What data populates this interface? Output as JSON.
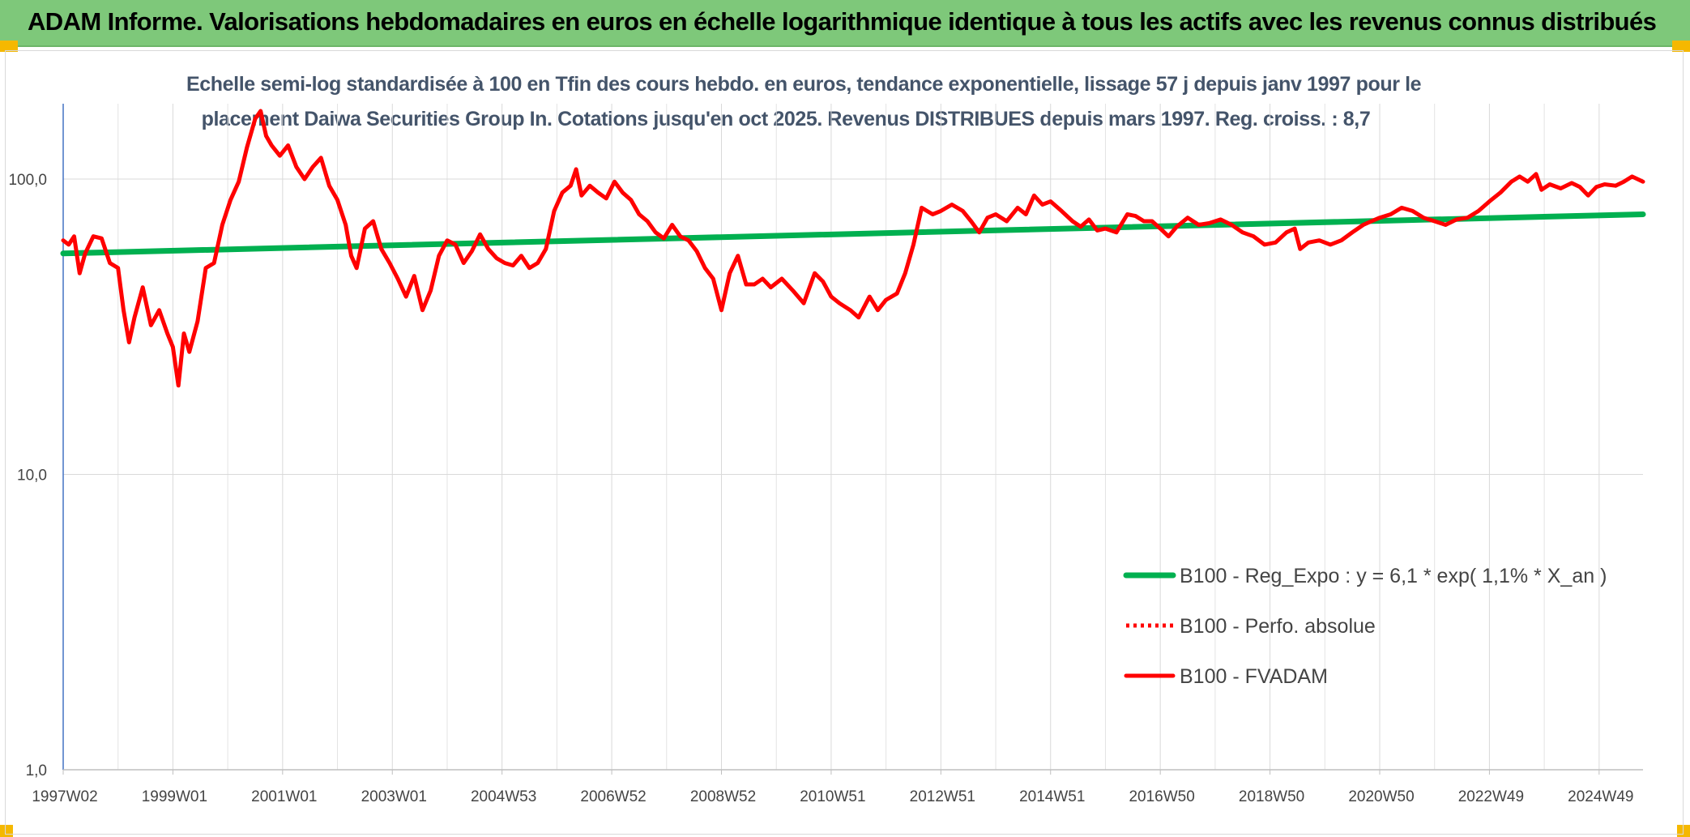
{
  "banner": {
    "title": "ADAM Informe. Valorisations hebdomadaires en euros en échelle logarithmique identique à tous les actifs avec les revenus connus distribués"
  },
  "chart_data": {
    "type": "line",
    "title_line1": "Echelle semi-log standardisée à 100 en Tfin des cours hebdo. en euros, tendance exponentielle, lissage 57 j depuis janv 1997 pour le",
    "title_line2": "placement Daiwa Securities Group In. Cotations jusqu'en oct 2025. Revenus DISTRIBUES depuis mars 1997. Reg. croiss. : 8,7",
    "y_scale": "log",
    "ylim": [
      1,
      180
    ],
    "y_ticks": [
      {
        "value": 1,
        "label": "1,0"
      },
      {
        "value": 10,
        "label": "10,0"
      },
      {
        "value": 100,
        "label": "100,0"
      }
    ],
    "x_range": [
      1997.0,
      2025.8
    ],
    "x_ticks": [
      {
        "value": 1997.0,
        "label": "1997W02"
      },
      {
        "value": 1999.0,
        "label": "1999W01"
      },
      {
        "value": 2001.0,
        "label": "2001W01"
      },
      {
        "value": 2003.0,
        "label": "2003W01"
      },
      {
        "value": 2005.0,
        "label": "2004W53"
      },
      {
        "value": 2007.0,
        "label": "2006W52"
      },
      {
        "value": 2009.0,
        "label": "2008W52"
      },
      {
        "value": 2011.0,
        "label": "2010W51"
      },
      {
        "value": 2013.0,
        "label": "2012W51"
      },
      {
        "value": 2015.0,
        "label": "2014W51"
      },
      {
        "value": 2017.0,
        "label": "2016W50"
      },
      {
        "value": 2019.0,
        "label": "2018W50"
      },
      {
        "value": 2021.0,
        "label": "2020W50"
      },
      {
        "value": 2023.0,
        "label": "2022W49"
      },
      {
        "value": 2025.0,
        "label": "2024W49"
      }
    ],
    "grid": "vertical",
    "legend_position": "right",
    "series": [
      {
        "name": "B100 - Reg_Expo : y = 6,1 * exp( 1,1% *  X_an )",
        "color": "#00b050",
        "style": "solid",
        "points": [
          [
            1997.0,
            56
          ],
          [
            2025.8,
            76
          ]
        ]
      },
      {
        "name": "B100 - Perfo. absolue",
        "color": "#ff0000",
        "style": "dotted",
        "points": []
      },
      {
        "name": "B100 - FVADAM",
        "color": "#ff0000",
        "style": "solid",
        "points": [
          [
            1997.0,
            62
          ],
          [
            1997.1,
            60
          ],
          [
            1997.2,
            64
          ],
          [
            1997.3,
            48
          ],
          [
            1997.4,
            56
          ],
          [
            1997.55,
            64
          ],
          [
            1997.7,
            63
          ],
          [
            1997.85,
            52
          ],
          [
            1998.0,
            50
          ],
          [
            1998.1,
            36
          ],
          [
            1998.2,
            28
          ],
          [
            1998.3,
            34
          ],
          [
            1998.45,
            43
          ],
          [
            1998.6,
            32
          ],
          [
            1998.75,
            36
          ],
          [
            1998.9,
            30
          ],
          [
            1999.0,
            27
          ],
          [
            1999.1,
            20
          ],
          [
            1999.2,
            30
          ],
          [
            1999.3,
            26
          ],
          [
            1999.45,
            33
          ],
          [
            1999.6,
            50
          ],
          [
            1999.75,
            52
          ],
          [
            1999.9,
            70
          ],
          [
            2000.05,
            85
          ],
          [
            2000.2,
            98
          ],
          [
            2000.35,
            128
          ],
          [
            2000.5,
            160
          ],
          [
            2000.6,
            170
          ],
          [
            2000.7,
            140
          ],
          [
            2000.8,
            130
          ],
          [
            2000.95,
            120
          ],
          [
            2001.1,
            130
          ],
          [
            2001.25,
            110
          ],
          [
            2001.4,
            100
          ],
          [
            2001.55,
            110
          ],
          [
            2001.7,
            118
          ],
          [
            2001.85,
            95
          ],
          [
            2002.0,
            85
          ],
          [
            2002.15,
            70
          ],
          [
            2002.25,
            55
          ],
          [
            2002.35,
            50
          ],
          [
            2002.5,
            68
          ],
          [
            2002.65,
            72
          ],
          [
            2002.8,
            58
          ],
          [
            2002.95,
            52
          ],
          [
            2003.1,
            46
          ],
          [
            2003.25,
            40
          ],
          [
            2003.4,
            47
          ],
          [
            2003.55,
            36
          ],
          [
            2003.7,
            42
          ],
          [
            2003.85,
            55
          ],
          [
            2004.0,
            62
          ],
          [
            2004.15,
            60
          ],
          [
            2004.3,
            52
          ],
          [
            2004.45,
            57
          ],
          [
            2004.6,
            65
          ],
          [
            2004.75,
            58
          ],
          [
            2004.9,
            54
          ],
          [
            2005.05,
            52
          ],
          [
            2005.2,
            51
          ],
          [
            2005.35,
            55
          ],
          [
            2005.5,
            50
          ],
          [
            2005.65,
            52
          ],
          [
            2005.8,
            58
          ],
          [
            2005.95,
            78
          ],
          [
            2006.1,
            90
          ],
          [
            2006.25,
            95
          ],
          [
            2006.35,
            108
          ],
          [
            2006.45,
            88
          ],
          [
            2006.6,
            95
          ],
          [
            2006.75,
            90
          ],
          [
            2006.9,
            86
          ],
          [
            2007.05,
            98
          ],
          [
            2007.2,
            90
          ],
          [
            2007.35,
            85
          ],
          [
            2007.5,
            76
          ],
          [
            2007.65,
            72
          ],
          [
            2007.8,
            66
          ],
          [
            2007.95,
            63
          ],
          [
            2008.1,
            70
          ],
          [
            2008.25,
            64
          ],
          [
            2008.4,
            62
          ],
          [
            2008.55,
            57
          ],
          [
            2008.7,
            50
          ],
          [
            2008.85,
            46
          ],
          [
            2009.0,
            36
          ],
          [
            2009.15,
            48
          ],
          [
            2009.3,
            55
          ],
          [
            2009.45,
            44
          ],
          [
            2009.6,
            44
          ],
          [
            2009.75,
            46
          ],
          [
            2009.9,
            43
          ],
          [
            2010.1,
            46
          ],
          [
            2010.3,
            42
          ],
          [
            2010.5,
            38
          ],
          [
            2010.7,
            48
          ],
          [
            2010.85,
            45
          ],
          [
            2011.0,
            40
          ],
          [
            2011.15,
            38
          ],
          [
            2011.35,
            36
          ],
          [
            2011.5,
            34
          ],
          [
            2011.7,
            40
          ],
          [
            2011.85,
            36
          ],
          [
            2012.0,
            39
          ],
          [
            2012.2,
            41
          ],
          [
            2012.35,
            48
          ],
          [
            2012.5,
            60
          ],
          [
            2012.65,
            80
          ],
          [
            2012.85,
            76
          ],
          [
            2013.0,
            78
          ],
          [
            2013.2,
            82
          ],
          [
            2013.4,
            78
          ],
          [
            2013.55,
            72
          ],
          [
            2013.7,
            66
          ],
          [
            2013.85,
            74
          ],
          [
            2014.0,
            76
          ],
          [
            2014.2,
            72
          ],
          [
            2014.4,
            80
          ],
          [
            2014.55,
            76
          ],
          [
            2014.7,
            88
          ],
          [
            2014.85,
            82
          ],
          [
            2015.0,
            84
          ],
          [
            2015.2,
            78
          ],
          [
            2015.4,
            72
          ],
          [
            2015.55,
            69
          ],
          [
            2015.7,
            73
          ],
          [
            2015.85,
            67
          ],
          [
            2016.0,
            68
          ],
          [
            2016.2,
            66
          ],
          [
            2016.4,
            76
          ],
          [
            2016.55,
            75
          ],
          [
            2016.7,
            72
          ],
          [
            2016.85,
            72
          ],
          [
            2017.0,
            68
          ],
          [
            2017.15,
            64
          ],
          [
            2017.3,
            69
          ],
          [
            2017.5,
            74
          ],
          [
            2017.7,
            70
          ],
          [
            2017.9,
            71
          ],
          [
            2018.1,
            73
          ],
          [
            2018.3,
            70
          ],
          [
            2018.5,
            66
          ],
          [
            2018.7,
            64
          ],
          [
            2018.9,
            60
          ],
          [
            2019.1,
            61
          ],
          [
            2019.3,
            66
          ],
          [
            2019.45,
            68
          ],
          [
            2019.55,
            58
          ],
          [
            2019.7,
            61
          ],
          [
            2019.9,
            62
          ],
          [
            2020.1,
            60
          ],
          [
            2020.3,
            62
          ],
          [
            2020.5,
            66
          ],
          [
            2020.7,
            70
          ],
          [
            2020.85,
            72
          ],
          [
            2021.0,
            74
          ],
          [
            2021.2,
            76
          ],
          [
            2021.4,
            80
          ],
          [
            2021.6,
            78
          ],
          [
            2021.8,
            74
          ],
          [
            2022.0,
            72
          ],
          [
            2022.2,
            70
          ],
          [
            2022.4,
            73
          ],
          [
            2022.6,
            74
          ],
          [
            2022.8,
            78
          ],
          [
            2023.0,
            84
          ],
          [
            2023.2,
            90
          ],
          [
            2023.4,
            98
          ],
          [
            2023.55,
            102
          ],
          [
            2023.7,
            98
          ],
          [
            2023.85,
            104
          ],
          [
            2023.95,
            92
          ],
          [
            2024.1,
            96
          ],
          [
            2024.3,
            93
          ],
          [
            2024.5,
            97
          ],
          [
            2024.65,
            94
          ],
          [
            2024.8,
            88
          ],
          [
            2024.95,
            94
          ],
          [
            2025.1,
            96
          ],
          [
            2025.3,
            95
          ],
          [
            2025.45,
            98
          ],
          [
            2025.6,
            102
          ],
          [
            2025.7,
            100
          ],
          [
            2025.8,
            98
          ]
        ]
      }
    ]
  }
}
